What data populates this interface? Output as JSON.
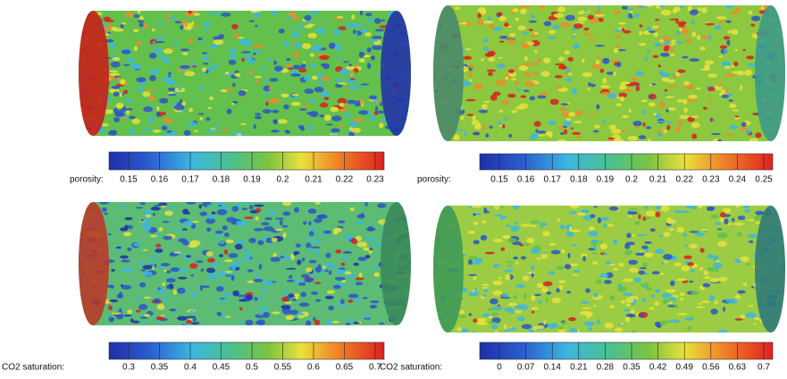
{
  "panels": [
    {
      "label": "porosity:",
      "ticks": [
        0.15,
        0.16,
        0.17,
        0.18,
        0.19,
        0.2,
        0.21,
        0.22,
        0.23
      ]
    },
    {
      "label": "porosity:",
      "ticks": [
        0.15,
        0.16,
        0.17,
        0.18,
        0.19,
        0.2,
        0.21,
        0.22,
        0.23,
        0.24,
        0.25
      ]
    },
    {
      "label": "CO2 saturation:",
      "ticks": [
        0.3,
        0.35,
        0.4,
        0.45,
        0.5,
        0.55,
        0.6,
        0.65,
        0.7
      ]
    },
    {
      "label": "CO2 saturation:",
      "ticks": [
        0,
        0.07,
        0.14,
        0.21,
        0.28,
        0.35,
        0.42,
        0.49,
        0.56,
        0.63,
        0.7
      ]
    }
  ]
}
